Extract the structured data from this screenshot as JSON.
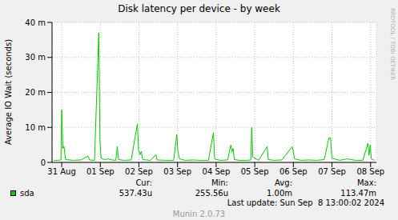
{
  "chart_data": {
    "type": "line",
    "title": "Disk latency per device - by week",
    "y_label": "Average IO Wait (seconds)",
    "x": [
      -0.2,
      -0.1,
      -0.02,
      0.0,
      0.03,
      0.06,
      0.1,
      0.3,
      0.5,
      0.68,
      0.72,
      0.85,
      0.96,
      0.99,
      1.02,
      1.1,
      1.2,
      1.3,
      1.4,
      1.44,
      1.47,
      1.6,
      1.8,
      1.96,
      1.99,
      2.03,
      2.06,
      2.1,
      2.3,
      2.44,
      2.47,
      2.7,
      2.9,
      2.98,
      3.01,
      3.05,
      3.2,
      3.4,
      3.6,
      3.8,
      3.93,
      3.96,
      4.1,
      4.3,
      4.35,
      4.38,
      4.41,
      4.44,
      4.47,
      4.6,
      4.8,
      4.9,
      4.92,
      4.95,
      5.1,
      5.32,
      5.35,
      5.5,
      5.7,
      5.97,
      6.0,
      6.03,
      6.2,
      6.4,
      6.6,
      6.8,
      6.92,
      6.96,
      7.0,
      7.2,
      7.4,
      7.6,
      7.8,
      7.93,
      7.96,
      7.99,
      8.02,
      8.1
    ],
    "series": [
      {
        "name": "sda",
        "color": "#00cc00",
        "values": [
          0.0006,
          0.0006,
          0.0007,
          0.015,
          0.004,
          0.0045,
          0.0008,
          0.0006,
          0.0007,
          0.0018,
          0.0007,
          0.0006,
          0.037,
          0.0065,
          0.0012,
          0.0008,
          0.001,
          0.0007,
          0.0006,
          0.0045,
          0.0008,
          0.0006,
          0.0007,
          0.011,
          0.0035,
          0.0022,
          0.0032,
          0.0008,
          0.0006,
          0.0022,
          0.0007,
          0.0006,
          0.0006,
          0.008,
          0.003,
          0.001,
          0.0006,
          0.0007,
          0.0006,
          0.0006,
          0.0085,
          0.001,
          0.0006,
          0.0007,
          0.0035,
          0.005,
          0.003,
          0.004,
          0.0008,
          0.0006,
          0.0006,
          0.0007,
          0.01,
          0.0015,
          0.0006,
          0.0045,
          0.0008,
          0.0006,
          0.0007,
          0.0045,
          0.003,
          0.001,
          0.0006,
          0.0007,
          0.0006,
          0.0008,
          0.007,
          0.007,
          0.0012,
          0.0006,
          0.001,
          0.0006,
          0.0006,
          0.0055,
          0.002,
          0.005,
          0.001,
          0.0006
        ]
      }
    ],
    "xlim": [
      -0.25,
      8.15
    ],
    "xticks": [
      {
        "value": 0,
        "label": "31 Aug"
      },
      {
        "value": 1,
        "label": "01 Sep"
      },
      {
        "value": 2,
        "label": "02 Sep"
      },
      {
        "value": 3,
        "label": "03 Sep"
      },
      {
        "value": 4,
        "label": "04 Sep"
      },
      {
        "value": 5,
        "label": "05 Sep"
      },
      {
        "value": 6,
        "label": "06 Sep"
      },
      {
        "value": 7,
        "label": "07 Sep"
      },
      {
        "value": 8,
        "label": "08 Sep"
      }
    ],
    "ylim": [
      0,
      0.04
    ],
    "yticks": [
      0,
      {
        "value": 0.01,
        "label": "10 m"
      },
      {
        "value": 0.02,
        "label": "20 m"
      },
      {
        "value": 0.03,
        "label": "30 m"
      },
      {
        "value": 0.04,
        "label": "40 m"
      }
    ],
    "grid": true,
    "legend": "bottom left",
    "stats": [
      {
        "label": "Cur:",
        "value": "537.43u"
      },
      {
        "label": "Min:",
        "value": "255.56u"
      },
      {
        "label": "Avg:",
        "value": "1.00m"
      },
      {
        "label": "Max:",
        "value": "113.47m"
      }
    ],
    "annotations": [
      "Last update: Sun Sep  8 13:00:02 2024",
      "Munin 2.0.73",
      "RRDTOOL / TOBI OETIKER"
    ]
  }
}
